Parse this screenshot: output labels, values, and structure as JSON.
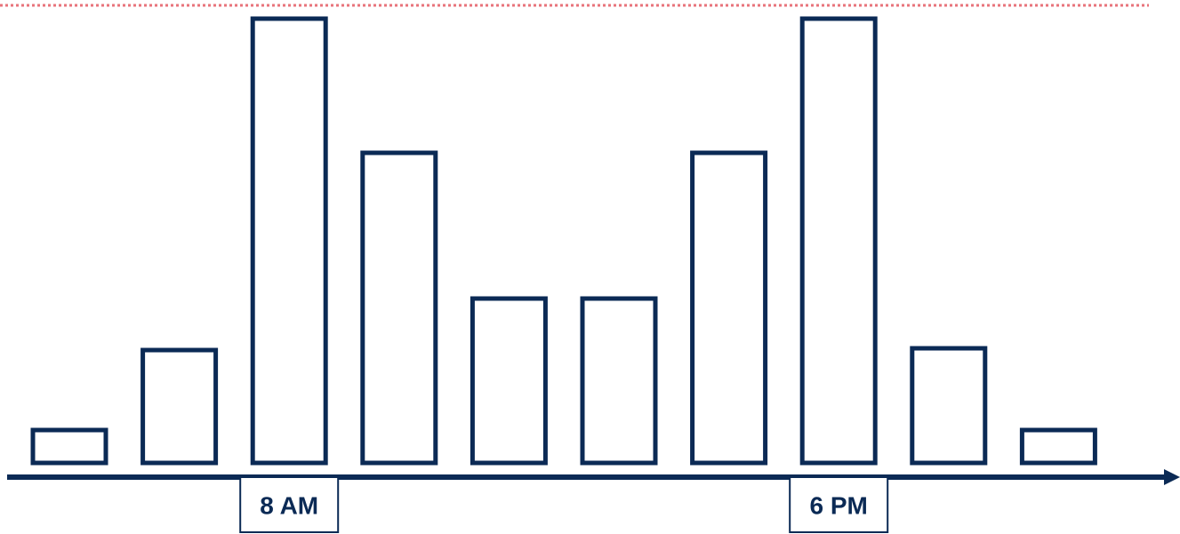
{
  "chart_data": {
    "type": "bar",
    "categories": [
      null,
      null,
      "8 AM",
      null,
      null,
      null,
      null,
      "6 PM",
      null,
      null
    ],
    "values": [
      7.4,
      25.4,
      100,
      69.8,
      37,
      37,
      69.8,
      100,
      25.8,
      7.4
    ],
    "color": "#0b2a55",
    "ylim": [
      0,
      104
    ],
    "reference_line": {
      "value": 103,
      "color": "#e8737b"
    }
  }
}
